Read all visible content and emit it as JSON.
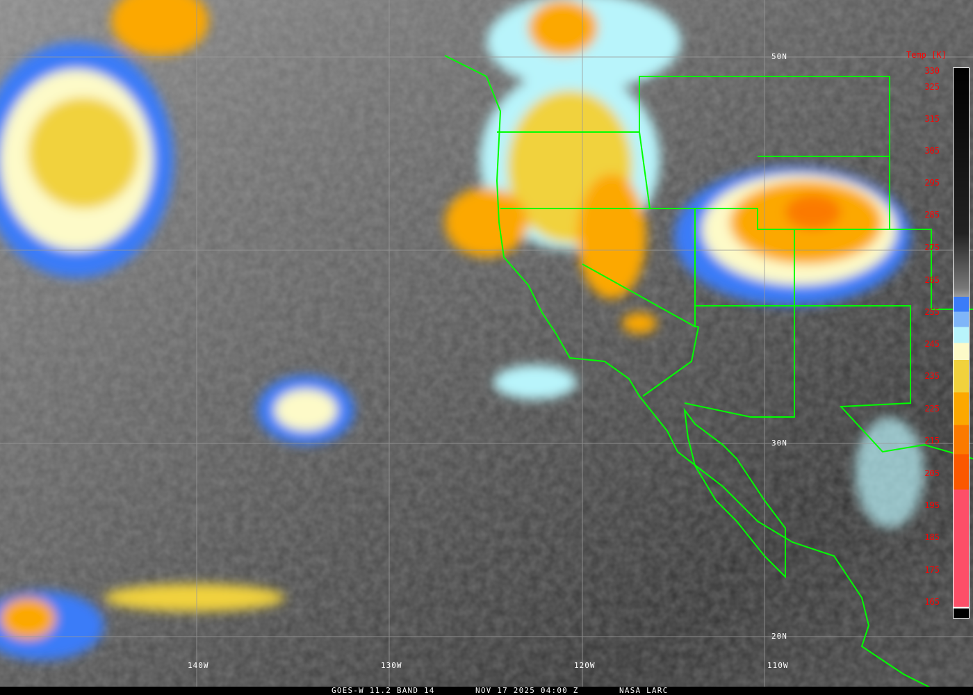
{
  "footer": {
    "satellite": "GOES-W 11.2 BAND 14",
    "datetime": "NOV 17 2025 04:00 Z",
    "source": "NASA LARC"
  },
  "grid": {
    "lon_labels": [
      "140W",
      "130W",
      "120W",
      "110W"
    ],
    "lat_labels": [
      "50N",
      "30N",
      "20N"
    ]
  },
  "colorbar": {
    "title": "Temp [K]",
    "ticks": [
      "330",
      "325",
      "315",
      "305",
      "295",
      "285",
      "275",
      "265",
      "255",
      "245",
      "235",
      "225",
      "215",
      "205",
      "195",
      "185",
      "175",
      "165"
    ],
    "colors": {
      "warm": "#000000",
      "mid": "#9a9a9a",
      "blue": "#3a7cf8",
      "light_blue": "#7fb5f8",
      "cyan": "#b8f4fb",
      "cream": "#fdfac8",
      "yellow": "#f1d23c",
      "orange": "#fca800",
      "dark_orange": "#fb7a00",
      "red_orange": "#fb5800",
      "pink": "#fd4f68"
    }
  },
  "overlay_color": "#00ff00"
}
